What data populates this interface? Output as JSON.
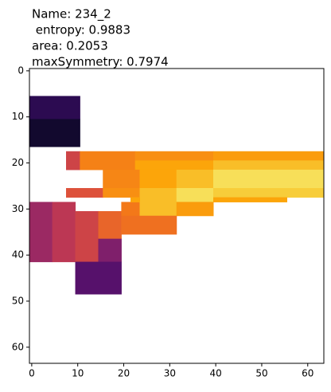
{
  "chart_data": {
    "type": "heatmap",
    "title": [
      "Name: 234_2",
      " entropy: 0.9883",
      "area: 0.2053",
      "maxSymmetry: 0.7974"
    ],
    "cmap": "inferno",
    "vlim": [
      0,
      1
    ],
    "xlim": [
      -0.5,
      63.5
    ],
    "ylim": [
      63.5,
      -0.5
    ],
    "xticks": [
      0,
      10,
      20,
      30,
      40,
      50,
      60
    ],
    "yticks": [
      0,
      10,
      20,
      30,
      40,
      50,
      60
    ],
    "cells": [
      {
        "x": 0,
        "y": 6,
        "w": 11,
        "h": 5,
        "value": 0.15
      },
      {
        "x": 0,
        "y": 11,
        "w": 11,
        "h": 6,
        "value": 0.08
      },
      {
        "x": 8,
        "y": 18,
        "w": 3,
        "h": 4,
        "value": 0.55
      },
      {
        "x": 11,
        "y": 18,
        "w": 12,
        "h": 4,
        "value": 0.72
      },
      {
        "x": 23,
        "y": 18,
        "w": 17,
        "h": 2,
        "value": 0.75
      },
      {
        "x": 40,
        "y": 18,
        "w": 24,
        "h": 2,
        "value": 0.78
      },
      {
        "x": 23,
        "y": 20,
        "w": 17,
        "h": 2,
        "value": 0.8
      },
      {
        "x": 40,
        "y": 20,
        "w": 24,
        "h": 2,
        "value": 0.85
      },
      {
        "x": 16,
        "y": 22,
        "w": 8,
        "h": 4,
        "value": 0.73
      },
      {
        "x": 24,
        "y": 22,
        "w": 8,
        "h": 4,
        "value": 0.8
      },
      {
        "x": 32,
        "y": 22,
        "w": 8,
        "h": 4,
        "value": 0.85
      },
      {
        "x": 40,
        "y": 22,
        "w": 24,
        "h": 4,
        "value": 0.92
      },
      {
        "x": 8,
        "y": 26,
        "w": 8,
        "h": 2,
        "value": 0.6
      },
      {
        "x": 16,
        "y": 26,
        "w": 8,
        "h": 2,
        "value": 0.75
      },
      {
        "x": 24,
        "y": 26,
        "w": 8,
        "h": 3,
        "value": 0.85
      },
      {
        "x": 32,
        "y": 26,
        "w": 8,
        "h": 3,
        "value": 0.92
      },
      {
        "x": 40,
        "y": 26,
        "w": 24,
        "h": 2,
        "value": 0.88
      },
      {
        "x": 40,
        "y": 28,
        "w": 16,
        "h": 1,
        "value": 0.8
      },
      {
        "x": 0,
        "y": 29,
        "w": 5,
        "h": 13,
        "value": 0.42
      },
      {
        "x": 5,
        "y": 29,
        "w": 5,
        "h": 13,
        "value": 0.5
      },
      {
        "x": 10,
        "y": 31,
        "w": 5,
        "h": 11,
        "value": 0.55
      },
      {
        "x": 15,
        "y": 31,
        "w": 5,
        "h": 6,
        "value": 0.65
      },
      {
        "x": 15,
        "y": 37,
        "w": 5,
        "h": 5,
        "value": 0.35
      },
      {
        "x": 20,
        "y": 29,
        "w": 4,
        "h": 3,
        "value": 0.7
      },
      {
        "x": 22,
        "y": 28,
        "w": 2,
        "h": 1,
        "value": 0.8
      },
      {
        "x": 24,
        "y": 29,
        "w": 8,
        "h": 3,
        "value": 0.85
      },
      {
        "x": 32,
        "y": 29,
        "w": 8,
        "h": 3,
        "value": 0.78
      },
      {
        "x": 20,
        "y": 32,
        "w": 12,
        "h": 4,
        "value": 0.68
      },
      {
        "x": 10,
        "y": 42,
        "w": 10,
        "h": 7,
        "value": 0.25
      }
    ]
  }
}
